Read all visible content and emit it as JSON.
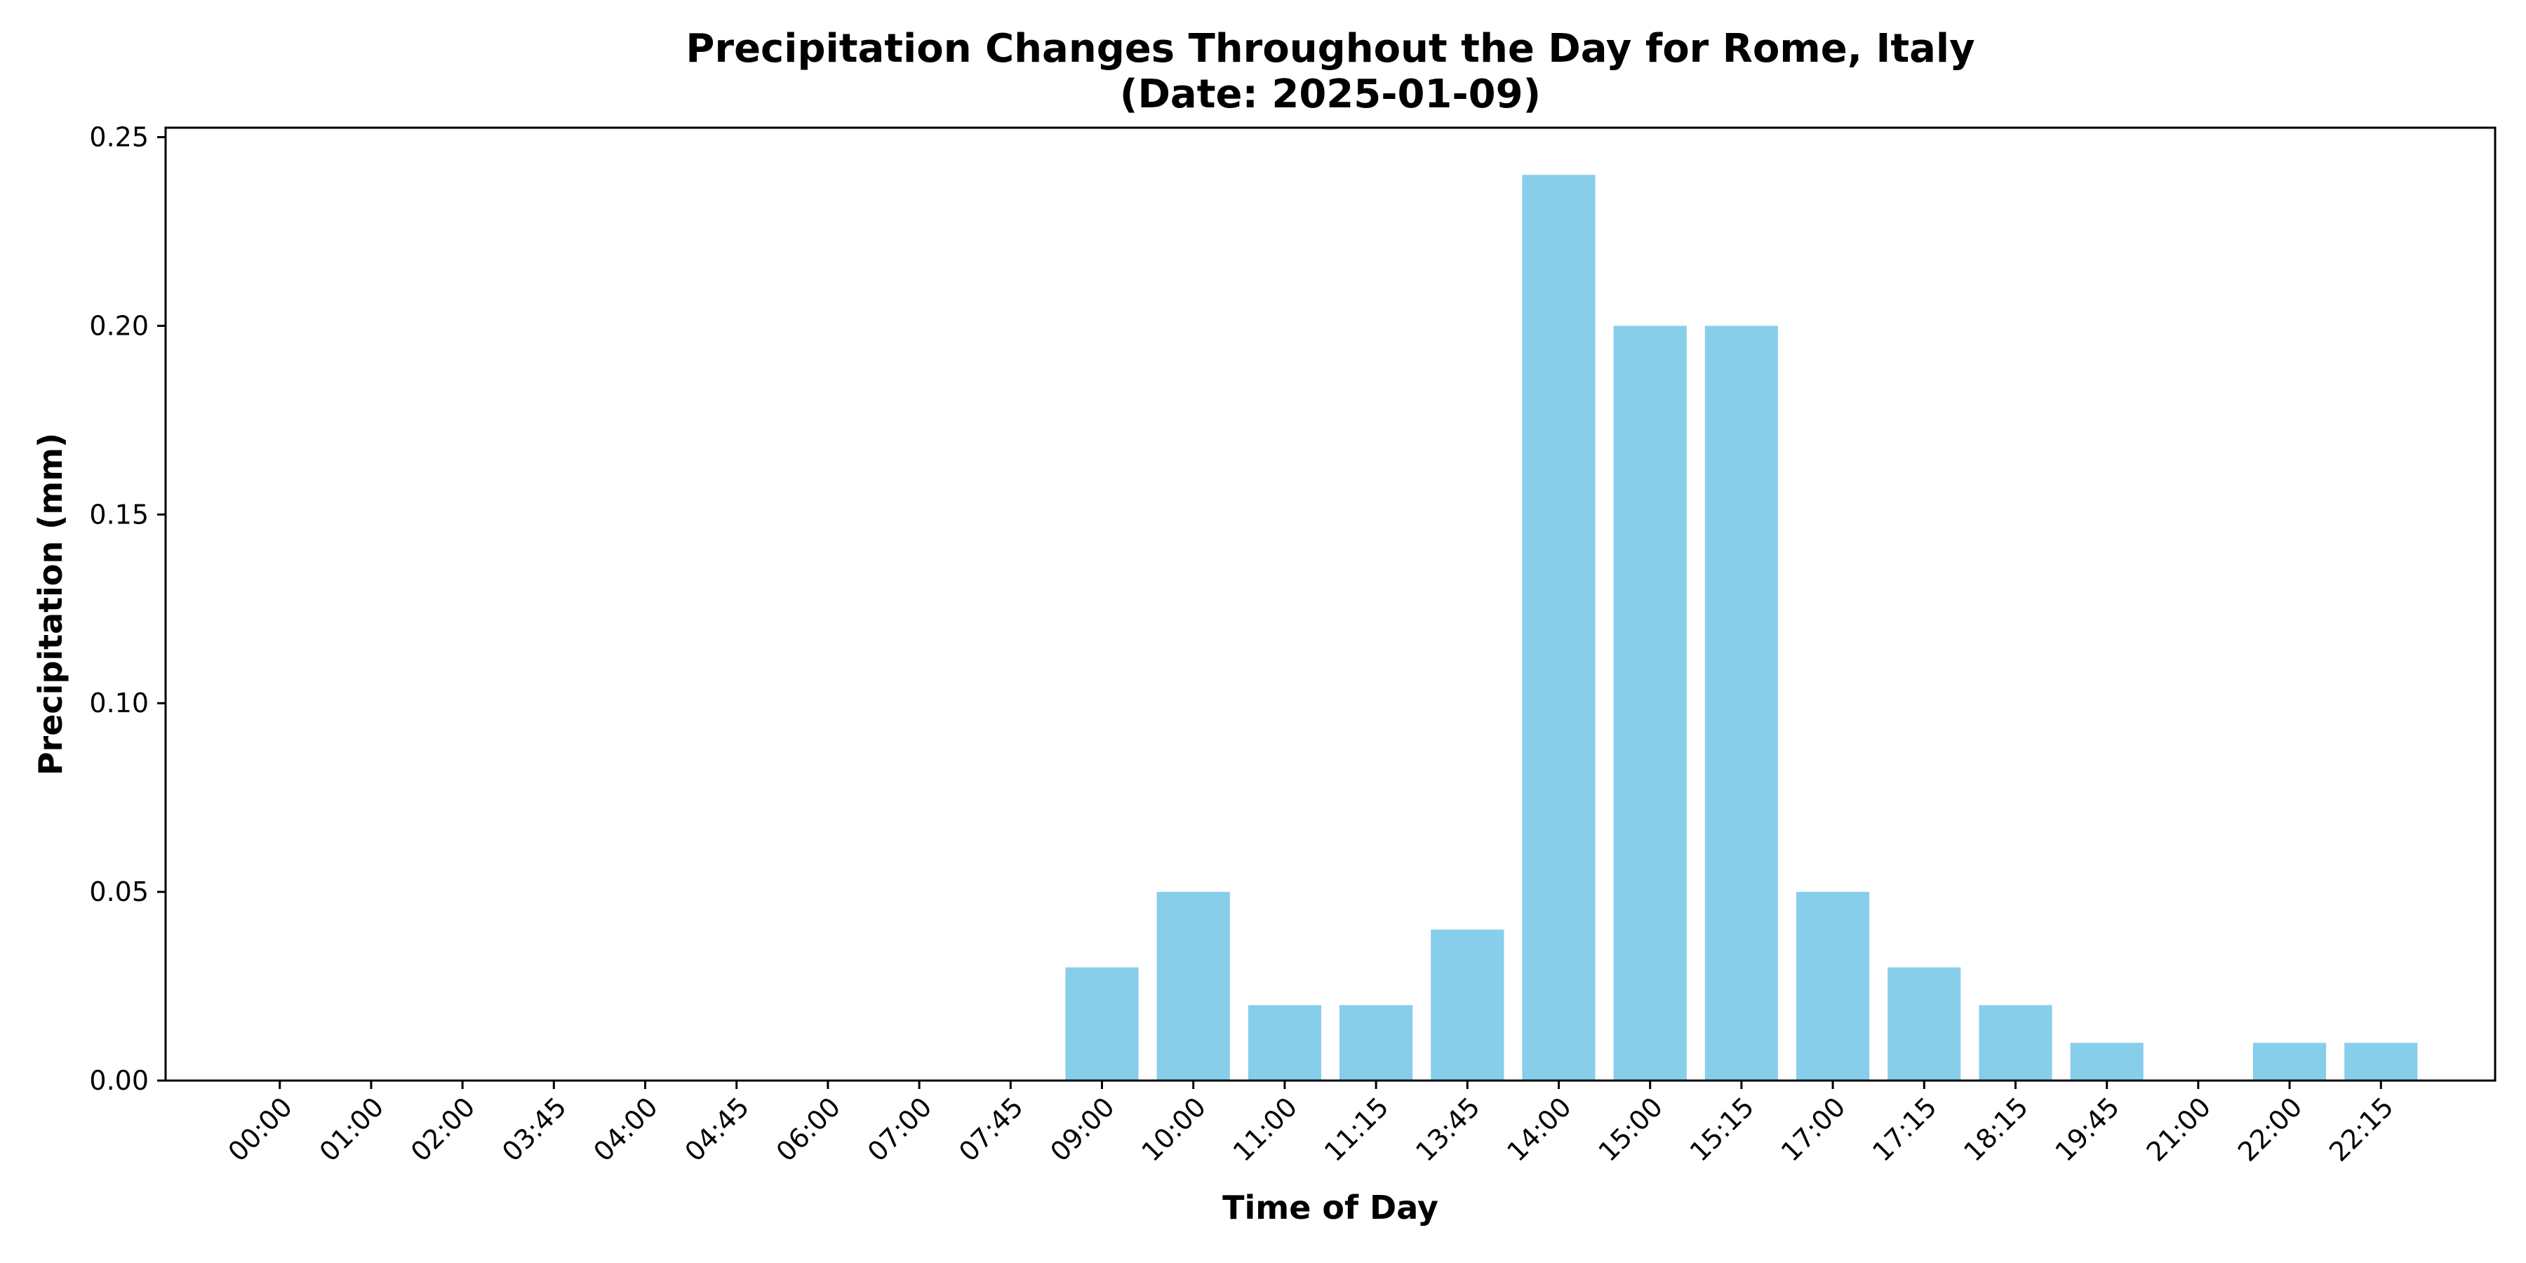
{
  "chart_data": {
    "type": "bar",
    "title_line1": "Precipitation Changes Throughout the Day for Rome, Italy",
    "title_line2": "(Date: 2025-01-09)",
    "xlabel": "Time of Day",
    "ylabel": "Precipitation (mm)",
    "categories": [
      "00:00",
      "01:00",
      "02:00",
      "03:45",
      "04:00",
      "04:45",
      "06:00",
      "07:00",
      "07:45",
      "09:00",
      "10:00",
      "11:00",
      "11:15",
      "13:45",
      "14:00",
      "15:00",
      "15:15",
      "17:00",
      "17:15",
      "18:15",
      "19:45",
      "21:00",
      "22:00",
      "22:15"
    ],
    "values": [
      0,
      0,
      0,
      0,
      0,
      0,
      0,
      0,
      0,
      0.03,
      0.05,
      0.02,
      0.02,
      0.04,
      0.24,
      0.2,
      0.2,
      0.05,
      0.03,
      0.02,
      0.01,
      0,
      0.01,
      0.01
    ],
    "yticks": [
      "0.00",
      "0.05",
      "0.10",
      "0.15",
      "0.20",
      "0.25"
    ],
    "ylim": [
      0,
      0.2525
    ],
    "grid": false,
    "bar_color": "#87CEEB"
  }
}
